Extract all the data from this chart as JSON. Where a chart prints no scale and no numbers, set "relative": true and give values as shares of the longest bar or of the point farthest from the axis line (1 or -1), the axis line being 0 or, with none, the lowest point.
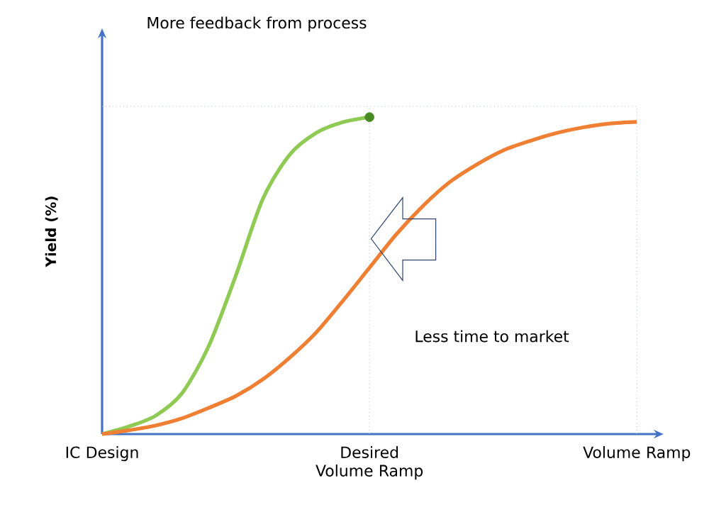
{
  "chart_data": {
    "type": "line",
    "relative": true,
    "ylabel": "Yield (%)",
    "annotations": [
      "More feedback from process",
      "Less time to market"
    ],
    "categories": [
      "IC Design",
      null,
      null,
      null,
      null,
      null,
      null,
      null,
      null,
      null,
      "Desired Volume Ramp",
      null,
      null,
      null,
      null,
      null,
      null,
      null,
      null,
      null,
      "Volume Ramp"
    ],
    "tick_labels": "x",
    "grid": false,
    "marker": "none",
    "line_style": "solid",
    "ref_lines": [
      {
        "axis": "x",
        "value": "Desired Volume Ramp",
        "color": "#a9bddf",
        "line_style": "dotted"
      },
      {
        "axis": "x",
        "value": "Volume Ramp",
        "color": "#a9bddf",
        "line_style": "dotted"
      },
      {
        "axis": "y",
        "value": 1.034,
        "color": "#a9bddf",
        "line_style": "dotted"
      }
    ],
    "series": [
      {
        "color": "#8fcb54",
        "values": [
          0,
          0.024,
          0.058,
          0.13,
          0.28,
          0.5,
          0.74,
          0.88,
          0.95,
          0.984,
          1.0,
          null,
          null,
          null,
          null,
          null,
          null,
          null,
          null,
          null,
          null
        ]
      },
      {
        "color": "#ee7f33",
        "values": [
          0,
          0.012,
          0.027,
          0.05,
          0.083,
          0.12,
          0.172,
          0.24,
          0.32,
          0.42,
          0.525,
          0.63,
          0.72,
          0.795,
          0.85,
          0.895,
          0.925,
          0.95,
          0.968,
          0.98,
          0.985
        ]
      },
      {
        "type": "scatter",
        "marker": "circle",
        "color": "#4a8a22",
        "values": [
          null,
          null,
          null,
          null,
          null,
          null,
          null,
          null,
          null,
          null,
          1.0,
          null,
          null,
          null,
          null,
          null,
          null,
          null,
          null,
          null,
          null
        ]
      }
    ]
  }
}
